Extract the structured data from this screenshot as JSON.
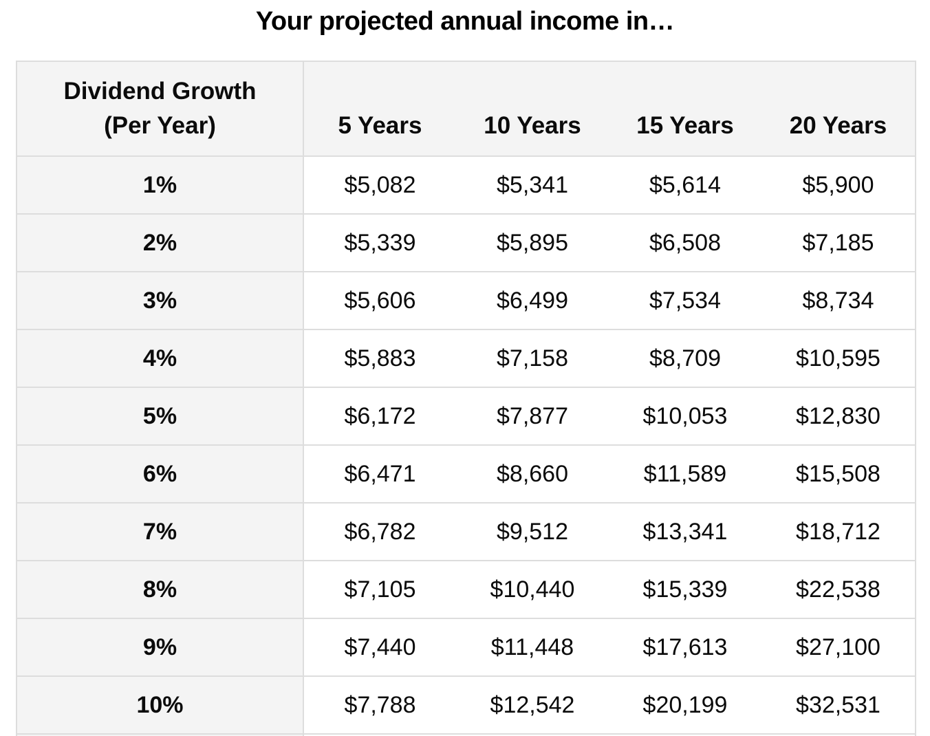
{
  "chart_data": {
    "type": "table",
    "title": "Your projected annual income in…",
    "row_header_lines": [
      "Dividend Growth",
      "(Per Year)"
    ],
    "columns": [
      "5 Years",
      "10 Years",
      "15 Years",
      "20 Years"
    ],
    "rows": [
      {
        "label": "1%",
        "values": [
          "$5,082",
          "$5,341",
          "$5,614",
          "$5,900"
        ]
      },
      {
        "label": "2%",
        "values": [
          "$5,339",
          "$5,895",
          "$6,508",
          "$7,185"
        ]
      },
      {
        "label": "3%",
        "values": [
          "$5,606",
          "$6,499",
          "$7,534",
          "$8,734"
        ]
      },
      {
        "label": "4%",
        "values": [
          "$5,883",
          "$7,158",
          "$8,709",
          "$10,595"
        ]
      },
      {
        "label": "5%",
        "values": [
          "$6,172",
          "$7,877",
          "$10,053",
          "$12,830"
        ]
      },
      {
        "label": "6%",
        "values": [
          "$6,471",
          "$8,660",
          "$11,589",
          "$15,508"
        ]
      },
      {
        "label": "7%",
        "values": [
          "$6,782",
          "$9,512",
          "$13,341",
          "$18,712"
        ]
      },
      {
        "label": "8%",
        "values": [
          "$7,105",
          "$10,440",
          "$15,339",
          "$22,538"
        ]
      },
      {
        "label": "9%",
        "values": [
          "$7,440",
          "$11,448",
          "$17,613",
          "$27,100"
        ]
      },
      {
        "label": "10%",
        "values": [
          "$7,788",
          "$12,542",
          "$20,199",
          "$32,531"
        ]
      }
    ],
    "layout": {
      "grid": "horizontal-borders",
      "first_column_divider": true,
      "partial_row_cut_off_at_bottom": true
    }
  },
  "colors": {
    "header_bg": "#f4f4f4",
    "row_label_bg": "#f4f4f4",
    "cell_bg": "#ffffff",
    "border": "#dddddd",
    "text": "#0b0b0b",
    "page_bg": "#ffffff"
  }
}
